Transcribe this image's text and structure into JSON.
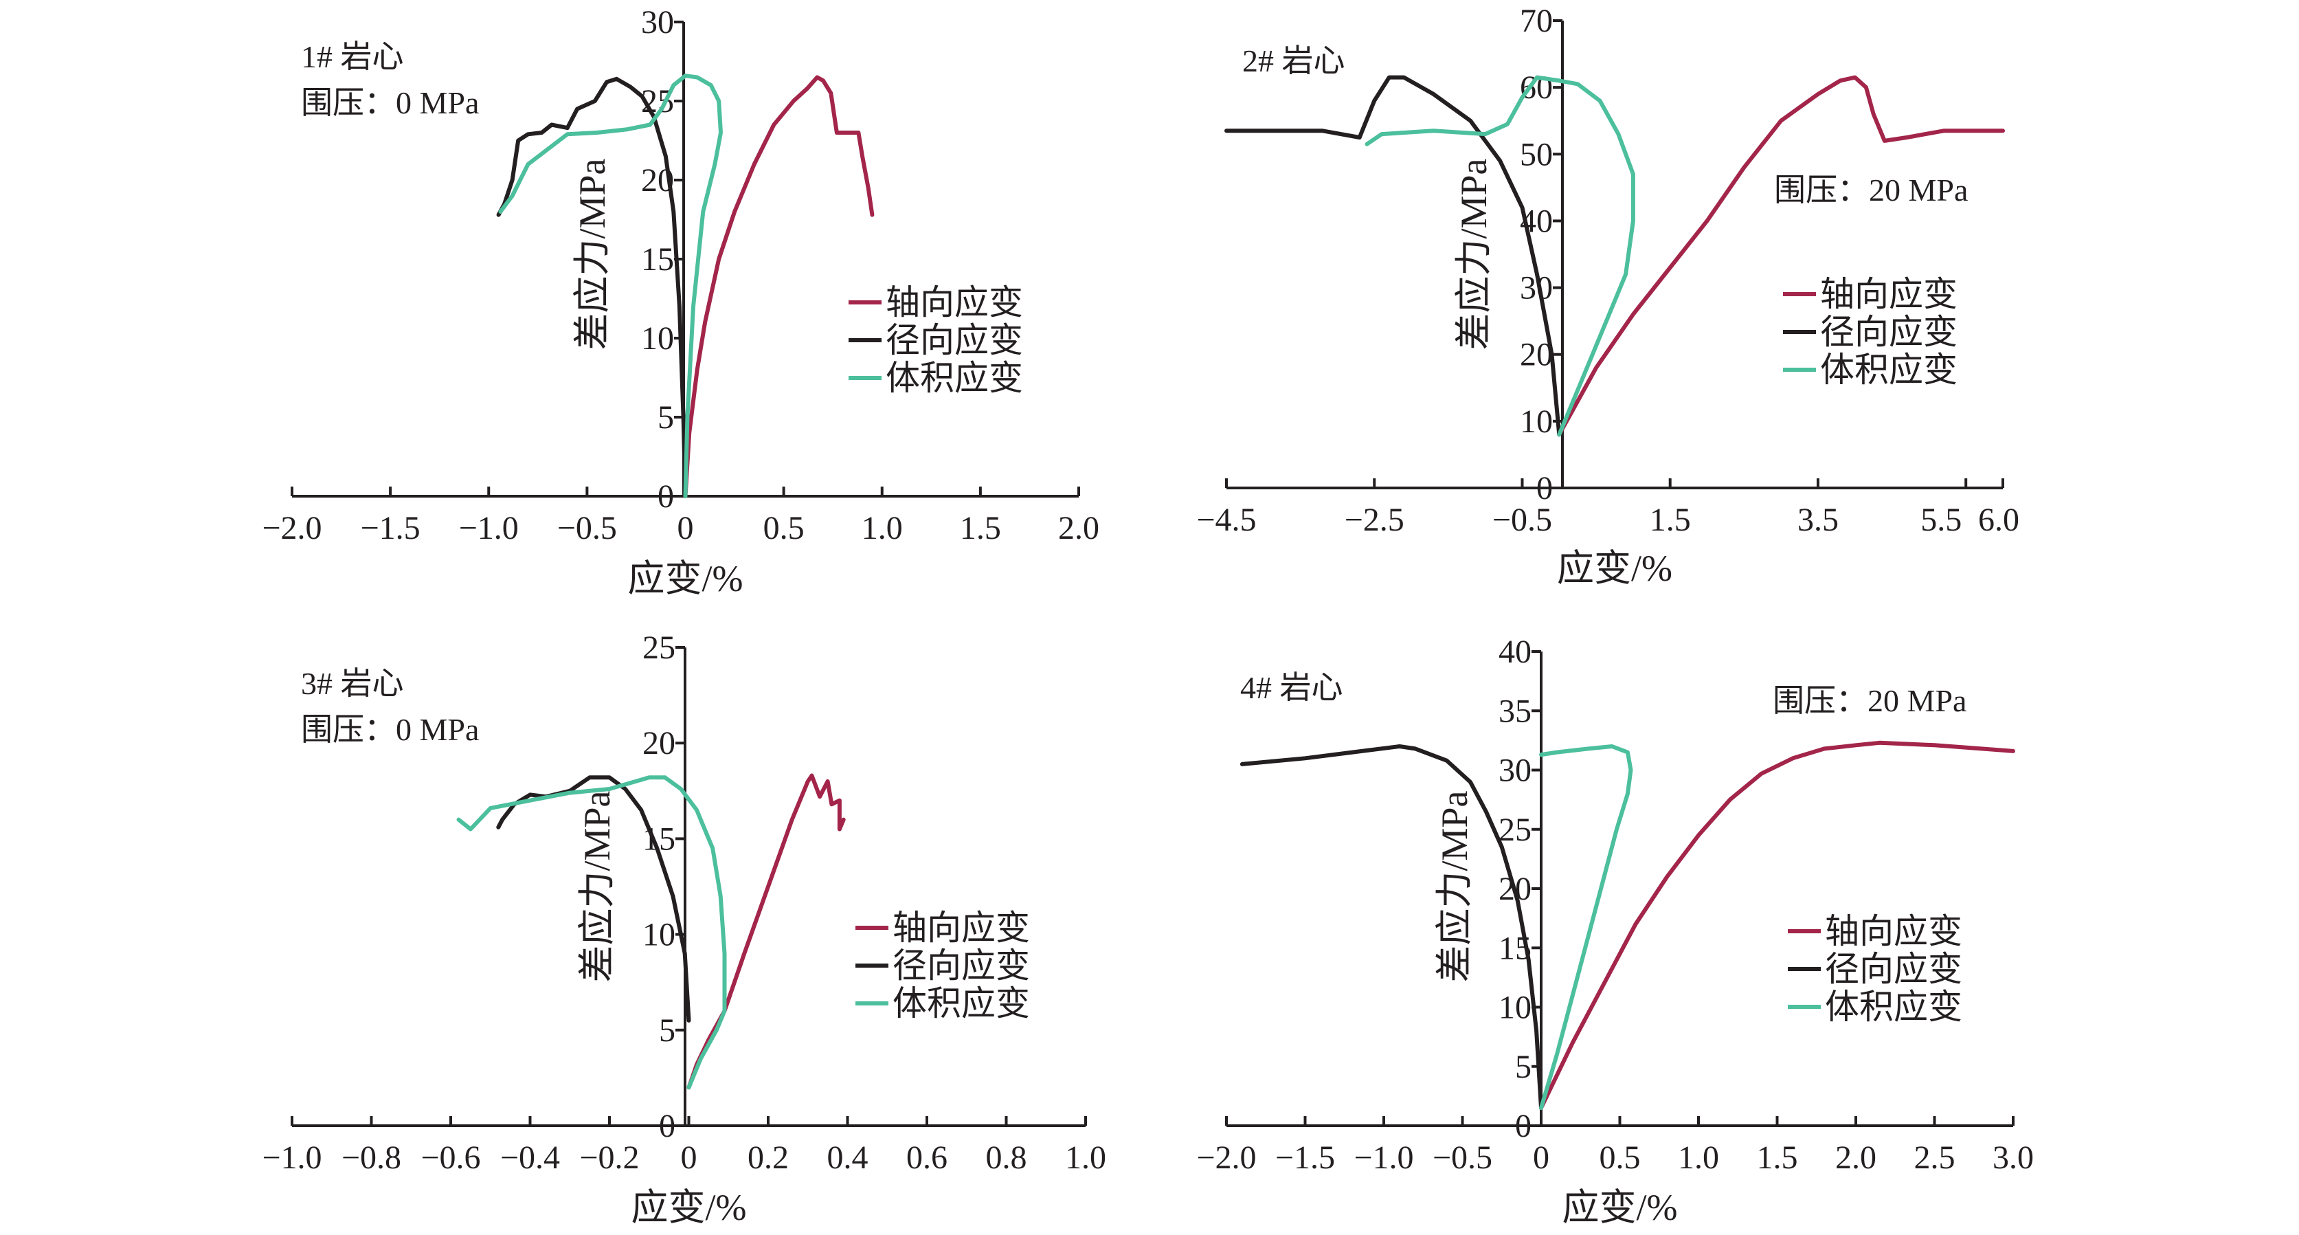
{
  "chart_data": [
    {
      "type": "line",
      "title": "",
      "annotations": [
        "1# 岩心",
        "围压：0 MPa"
      ],
      "xlabel": "应变/%",
      "ylabel": "差应力/MPa",
      "xlim": [
        -2.0,
        2.0
      ],
      "ylim": [
        0,
        30
      ],
      "xticks": [
        "−2.0",
        "−1.5",
        "−1.0",
        "−0.5",
        "0",
        "0.5",
        "1.0",
        "1.5",
        "2.0"
      ],
      "yticks": [
        "0",
        "5",
        "10",
        "15",
        "20",
        "25",
        "30"
      ],
      "grid": false,
      "legend_position": "right-middle",
      "series": [
        {
          "name": "轴向应变",
          "color": "#a3254a",
          "points": [
            [
              0,
              0
            ],
            [
              0.02,
              4
            ],
            [
              0.06,
              8
            ],
            [
              0.1,
              11
            ],
            [
              0.17,
              15
            ],
            [
              0.25,
              18
            ],
            [
              0.35,
              21
            ],
            [
              0.45,
              23.5
            ],
            [
              0.55,
              25
            ],
            [
              0.62,
              25.8
            ],
            [
              0.67,
              26.5
            ],
            [
              0.7,
              26.3
            ],
            [
              0.74,
              25.5
            ],
            [
              0.77,
              23
            ],
            [
              0.88,
              23
            ],
            [
              0.9,
              21.5
            ],
            [
              0.93,
              19.5
            ],
            [
              0.95,
              17.8
            ]
          ]
        },
        {
          "name": "径向应变",
          "color": "#231f20",
          "points": [
            [
              0,
              0
            ],
            [
              -0.01,
              5
            ],
            [
              -0.03,
              12
            ],
            [
              -0.06,
              18
            ],
            [
              -0.1,
              21.5
            ],
            [
              -0.16,
              24
            ],
            [
              -0.22,
              25.3
            ],
            [
              -0.28,
              25.9
            ],
            [
              -0.35,
              26.4
            ],
            [
              -0.4,
              26.2
            ],
            [
              -0.46,
              25
            ],
            [
              -0.55,
              24.5
            ],
            [
              -0.6,
              23.3
            ],
            [
              -0.68,
              23.5
            ],
            [
              -0.73,
              23
            ],
            [
              -0.8,
              22.9
            ],
            [
              -0.85,
              22.5
            ],
            [
              -0.88,
              20
            ],
            [
              -0.92,
              18.5
            ],
            [
              -0.95,
              17.8
            ]
          ]
        },
        {
          "name": "体积应变",
          "color": "#4cbf9d",
          "points": [
            [
              0,
              0
            ],
            [
              0.01,
              5
            ],
            [
              0.04,
              12
            ],
            [
              0.09,
              18
            ],
            [
              0.15,
              21
            ],
            [
              0.18,
              23
            ],
            [
              0.17,
              25
            ],
            [
              0.13,
              26
            ],
            [
              0.06,
              26.5
            ],
            [
              0,
              26.6
            ],
            [
              -0.06,
              26
            ],
            [
              -0.12,
              24.5
            ],
            [
              -0.18,
              23.5
            ],
            [
              -0.3,
              23.2
            ],
            [
              -0.45,
              23
            ],
            [
              -0.6,
              22.9
            ],
            [
              -0.8,
              21
            ],
            [
              -0.88,
              19
            ],
            [
              -0.94,
              18
            ]
          ]
        }
      ]
    },
    {
      "type": "line",
      "title": "",
      "annotations": [
        "2# 岩心",
        "围压：20 MPa"
      ],
      "xlabel": "应变/%",
      "ylabel": "差应力/MPa",
      "xlim": [
        -4.5,
        6.0
      ],
      "ylim": [
        0,
        70
      ],
      "xticks": [
        "−4.5",
        "−2.5",
        "−0.5",
        "1.5",
        "3.5",
        "5.5",
        "6.0"
      ],
      "yticks": [
        "0",
        "10",
        "20",
        "30",
        "40",
        "50",
        "60",
        "70"
      ],
      "grid": false,
      "legend_position": "right-middle",
      "series": [
        {
          "name": "轴向应变",
          "color": "#a3254a",
          "points": [
            [
              0,
              8
            ],
            [
              0.5,
              18
            ],
            [
              1,
              26
            ],
            [
              1.5,
              33
            ],
            [
              2,
              40
            ],
            [
              2.5,
              48
            ],
            [
              3,
              55
            ],
            [
              3.5,
              59
            ],
            [
              3.8,
              61
            ],
            [
              4,
              61.5
            ],
            [
              4.15,
              60
            ],
            [
              4.25,
              56
            ],
            [
              4.4,
              52
            ],
            [
              4.7,
              52.5
            ],
            [
              5.2,
              53.5
            ],
            [
              6,
              53.5
            ]
          ]
        },
        {
          "name": "径向应变",
          "color": "#231f20",
          "points": [
            [
              0,
              8
            ],
            [
              -0.1,
              20
            ],
            [
              -0.3,
              32
            ],
            [
              -0.5,
              42
            ],
            [
              -0.8,
              49
            ],
            [
              -1.2,
              55
            ],
            [
              -1.7,
              59
            ],
            [
              -2.1,
              61.5
            ],
            [
              -2.3,
              61.5
            ],
            [
              -2.5,
              58
            ],
            [
              -2.7,
              52.5
            ],
            [
              -3.2,
              53.5
            ],
            [
              -4.5,
              53.5
            ]
          ]
        },
        {
          "name": "体积应变",
          "color": "#4cbf9d",
          "points": [
            [
              0,
              8
            ],
            [
              0.3,
              16
            ],
            [
              0.6,
              24
            ],
            [
              0.9,
              32
            ],
            [
              1.0,
              40
            ],
            [
              1.0,
              47
            ],
            [
              0.8,
              53
            ],
            [
              0.55,
              58
            ],
            [
              0.25,
              60.5
            ],
            [
              0,
              61
            ],
            [
              -0.3,
              61.5
            ],
            [
              -0.5,
              58.5
            ],
            [
              -0.7,
              54.5
            ],
            [
              -1.0,
              53
            ],
            [
              -1.7,
              53.5
            ],
            [
              -2.4,
              53
            ],
            [
              -2.6,
              51.5
            ]
          ]
        }
      ]
    },
    {
      "type": "line",
      "title": "",
      "annotations": [
        "3# 岩心",
        "围压：0 MPa"
      ],
      "xlabel": "应变/%",
      "ylabel": "差应力/MPa",
      "xlim": [
        -1.0,
        1.0
      ],
      "ylim": [
        0,
        25
      ],
      "xticks": [
        "−1.0",
        "−0.8",
        "−0.6",
        "−0.4",
        "−0.2",
        "0",
        "0.2",
        "0.4",
        "0.6",
        "0.8",
        "1.0"
      ],
      "yticks": [
        "0",
        "5",
        "10",
        "15",
        "20",
        "25"
      ],
      "grid": false,
      "legend_position": "right-middle",
      "series": [
        {
          "name": "轴向应变",
          "color": "#a3254a",
          "points": [
            [
              0,
              2
            ],
            [
              0.02,
              3.2
            ],
            [
              0.05,
              4.5
            ],
            [
              0.09,
              6
            ],
            [
              0.14,
              9
            ],
            [
              0.2,
              12.5
            ],
            [
              0.26,
              16
            ],
            [
              0.3,
              18
            ],
            [
              0.31,
              18.3
            ],
            [
              0.33,
              17.2
            ],
            [
              0.35,
              18
            ],
            [
              0.36,
              16.8
            ],
            [
              0.38,
              17
            ],
            [
              0.38,
              15.5
            ],
            [
              0.39,
              16
            ]
          ]
        },
        {
          "name": "径向应变",
          "color": "#231f20",
          "points": [
            [
              0,
              5.5
            ],
            [
              -0.01,
              9
            ],
            [
              -0.04,
              12
            ],
            [
              -0.08,
              14.5
            ],
            [
              -0.12,
              16.5
            ],
            [
              -0.16,
              17.6
            ],
            [
              -0.2,
              18.2
            ],
            [
              -0.25,
              18.2
            ],
            [
              -0.3,
              17.5
            ],
            [
              -0.36,
              17.2
            ],
            [
              -0.4,
              17.3
            ],
            [
              -0.44,
              16.8
            ],
            [
              -0.47,
              16
            ],
            [
              -0.48,
              15.6
            ]
          ]
        },
        {
          "name": "体积应变",
          "color": "#4cbf9d",
          "points": [
            [
              0,
              2
            ],
            [
              0.03,
              3.5
            ],
            [
              0.07,
              5
            ],
            [
              0.09,
              6
            ],
            [
              0.09,
              9
            ],
            [
              0.08,
              12
            ],
            [
              0.06,
              14.5
            ],
            [
              0.02,
              16.5
            ],
            [
              -0.02,
              17.6
            ],
            [
              -0.06,
              18.2
            ],
            [
              -0.1,
              18.2
            ],
            [
              -0.2,
              17.6
            ],
            [
              -0.3,
              17.4
            ],
            [
              -0.4,
              17
            ],
            [
              -0.5,
              16.6
            ],
            [
              -0.55,
              15.5
            ],
            [
              -0.58,
              16
            ]
          ]
        }
      ]
    },
    {
      "type": "line",
      "title": "",
      "annotations": [
        "4# 岩心",
        "围压：20 MPa"
      ],
      "xlabel": "应变/%",
      "ylabel": "差应力/MPa",
      "xlim": [
        -2.0,
        3.0
      ],
      "ylim": [
        0,
        40
      ],
      "xticks": [
        "−2.0",
        "−1.5",
        "−1.0",
        "−0.5",
        "0",
        "0.5",
        "1.0",
        "1.5",
        "2.0",
        "2.5",
        "3.0"
      ],
      "yticks": [
        "0",
        "5",
        "10",
        "15",
        "20",
        "25",
        "30",
        "35",
        "40"
      ],
      "grid": false,
      "legend_position": "right-middle",
      "series": [
        {
          "name": "轴向应变",
          "color": "#a3254a",
          "points": [
            [
              0,
              1.5
            ],
            [
              0.2,
              7
            ],
            [
              0.4,
              12
            ],
            [
              0.6,
              17
            ],
            [
              0.8,
              21
            ],
            [
              1.0,
              24.5
            ],
            [
              1.2,
              27.5
            ],
            [
              1.4,
              29.7
            ],
            [
              1.6,
              31
            ],
            [
              1.8,
              31.8
            ],
            [
              2.0,
              32.1
            ],
            [
              2.15,
              32.3
            ],
            [
              2.5,
              32.1
            ],
            [
              3.0,
              31.6
            ]
          ]
        },
        {
          "name": "径向应变",
          "color": "#231f20",
          "points": [
            [
              0,
              1.5
            ],
            [
              -0.03,
              8
            ],
            [
              -0.08,
              14
            ],
            [
              -0.15,
              19
            ],
            [
              -0.25,
              23.5
            ],
            [
              -0.35,
              26.5
            ],
            [
              -0.45,
              29
            ],
            [
              -0.6,
              30.8
            ],
            [
              -0.8,
              31.8
            ],
            [
              -0.9,
              32
            ],
            [
              -1.2,
              31.5
            ],
            [
              -1.5,
              31
            ],
            [
              -1.9,
              30.5
            ]
          ]
        },
        {
          "name": "体积应变",
          "color": "#4cbf9d",
          "points": [
            [
              0,
              1.5
            ],
            [
              0.1,
              6
            ],
            [
              0.2,
              11
            ],
            [
              0.3,
              16
            ],
            [
              0.4,
              21
            ],
            [
              0.48,
              25
            ],
            [
              0.55,
              28
            ],
            [
              0.57,
              30
            ],
            [
              0.55,
              31.5
            ],
            [
              0.45,
              32
            ],
            [
              0.3,
              31.8
            ],
            [
              0.1,
              31.5
            ],
            [
              0,
              31.3
            ]
          ]
        }
      ]
    }
  ]
}
